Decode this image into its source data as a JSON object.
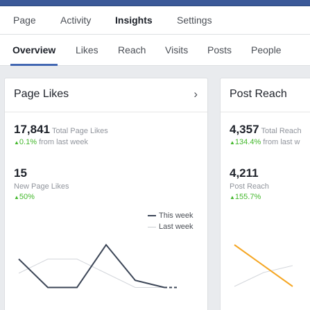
{
  "top_tabs": [
    "Page",
    "Activity",
    "Insights",
    "Settings"
  ],
  "sub_tabs": [
    "Overview",
    "Likes",
    "Reach",
    "Visits",
    "Posts",
    "People"
  ],
  "page_likes": {
    "title": "Page Likes",
    "total_value": "17,841",
    "total_label": "Total Page Likes",
    "total_change_pct": "0.1%",
    "total_change_label": "from last week",
    "new_value": "15",
    "new_label": "New Page Likes",
    "new_change_pct": "50%",
    "legend": {
      "this_week": "This week",
      "last_week": "Last week"
    },
    "chart_data": {
      "type": "line",
      "series": [
        {
          "name": "This week",
          "values": [
            3,
            1,
            1,
            4,
            1.5,
            1
          ],
          "color": "#3b4556"
        },
        {
          "name": "Last week",
          "values": [
            2,
            3,
            3,
            2,
            1,
            1
          ],
          "color": "#d3d6db"
        }
      ]
    }
  },
  "post_reach": {
    "title": "Post Reach",
    "total_value": "4,357",
    "total_label": "Total Reach",
    "total_change_pct": "134.4%",
    "total_change_label": "from last w",
    "reach_value": "4,211",
    "reach_label": "Post Reach",
    "reach_change_pct": "155.7%",
    "chart_data": {
      "type": "line",
      "series": [
        {
          "name": "This week",
          "values": [
            4,
            2.5,
            1
          ],
          "color": "#f5a623"
        },
        {
          "name": "Last week",
          "values": [
            1,
            2,
            2.5
          ],
          "color": "#d3d6db"
        }
      ]
    }
  },
  "icons": {
    "chevron": "chevron-right-icon",
    "up": "up-arrow-icon"
  },
  "colors": {
    "accent": "#4267b2",
    "positive": "#42b72a",
    "topbar": "#3b5998"
  }
}
